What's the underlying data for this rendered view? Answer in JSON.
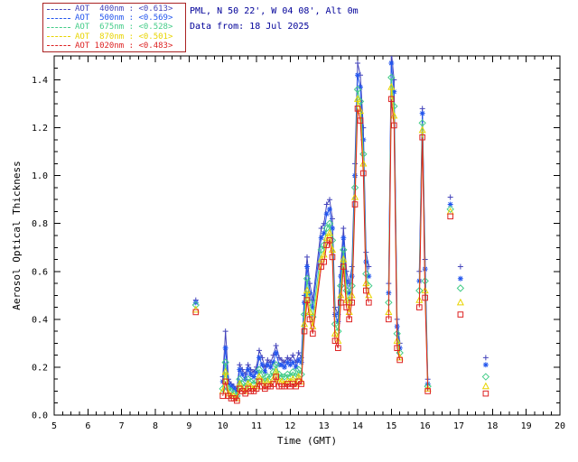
{
  "header": {
    "site_line": "PML, N 50 22', W 04 08', Alt 0m",
    "date_line": "Data from: 18 Jul 2025",
    "text_color": "#000099"
  },
  "legend": {
    "border_color": "#aa2222",
    "position": "top-left"
  },
  "chart_data": {
    "type": "line",
    "title": "",
    "xlabel": "Time (GMT)",
    "ylabel": "Aerosol Optical Thickness",
    "xlim": [
      5,
      20
    ],
    "ylim": [
      0,
      1.5
    ],
    "x_tick_labels": [
      "5",
      "6",
      "7",
      "8",
      "9",
      "10",
      "11",
      "12",
      "13",
      "14",
      "15",
      "16",
      "17",
      "18",
      "19",
      "20"
    ],
    "y_tick_labels": [
      "0.0",
      "0.2",
      "0.4",
      "0.6",
      "0.8",
      "1.0",
      "1.2",
      "1.4"
    ],
    "x_major_step": 1,
    "x_minor_step": 0.25,
    "y_major_step": 0.2,
    "y_minor_step": 0.05,
    "grid": false,
    "axis_color": "#000000",
    "background": "#ffffff",
    "gap_threshold": 0.28,
    "legend_position": "outside-top-left",
    "x": [
      9.2,
      10.0,
      10.08,
      10.17,
      10.25,
      10.33,
      10.42,
      10.5,
      10.58,
      10.67,
      10.75,
      10.83,
      10.92,
      11.0,
      11.08,
      11.17,
      11.25,
      11.33,
      11.42,
      11.5,
      11.58,
      11.67,
      11.75,
      11.83,
      11.92,
      12.0,
      12.08,
      12.17,
      12.25,
      12.33,
      12.42,
      12.5,
      12.58,
      12.67,
      12.92,
      13.0,
      13.08,
      13.17,
      13.25,
      13.33,
      13.42,
      13.5,
      13.58,
      13.67,
      13.75,
      13.83,
      13.92,
      14.0,
      14.08,
      14.17,
      14.25,
      14.33,
      14.92,
      15.0,
      15.08,
      15.17,
      15.25,
      15.83,
      15.92,
      16.0,
      16.08,
      16.75,
      17.05,
      17.8
    ],
    "series": [
      {
        "name": "aot-400nm",
        "label": "AOT  400nm : <0.613>",
        "wavelength_nm": 400,
        "mean_aot": 0.613,
        "color": "#4444bb",
        "marker": "plus",
        "values": [
          0.48,
          0.16,
          0.35,
          0.15,
          0.13,
          0.12,
          0.11,
          0.21,
          0.19,
          0.17,
          0.21,
          0.19,
          0.18,
          0.2,
          0.27,
          0.24,
          0.2,
          0.23,
          0.22,
          0.25,
          0.29,
          0.24,
          0.23,
          0.22,
          0.24,
          0.23,
          0.25,
          0.22,
          0.26,
          0.24,
          0.5,
          0.66,
          0.55,
          0.48,
          0.78,
          0.8,
          0.88,
          0.9,
          0.82,
          0.45,
          0.42,
          0.62,
          0.78,
          0.6,
          0.55,
          0.62,
          1.05,
          1.47,
          1.42,
          1.2,
          0.68,
          0.62,
          0.55,
          1.52,
          1.4,
          0.4,
          0.3,
          0.6,
          1.28,
          0.65,
          0.15,
          0.91,
          0.62,
          0.24
        ]
      },
      {
        "name": "aot-500nm",
        "label": "AOT  500nm : <0.569>",
        "wavelength_nm": 500,
        "mean_aot": 0.569,
        "color": "#2255ee",
        "marker": "asterisk",
        "values": [
          0.47,
          0.14,
          0.28,
          0.13,
          0.12,
          0.11,
          0.1,
          0.19,
          0.17,
          0.15,
          0.19,
          0.17,
          0.16,
          0.18,
          0.24,
          0.21,
          0.18,
          0.21,
          0.2,
          0.22,
          0.26,
          0.21,
          0.21,
          0.2,
          0.22,
          0.21,
          0.22,
          0.2,
          0.23,
          0.22,
          0.47,
          0.62,
          0.51,
          0.45,
          0.74,
          0.76,
          0.84,
          0.86,
          0.78,
          0.42,
          0.39,
          0.58,
          0.74,
          0.56,
          0.51,
          0.58,
          1.0,
          1.42,
          1.37,
          1.15,
          0.64,
          0.58,
          0.51,
          1.47,
          1.35,
          0.37,
          0.28,
          0.56,
          1.26,
          0.61,
          0.13,
          0.88,
          0.57,
          0.21
        ]
      },
      {
        "name": "aot-675nm",
        "label": "AOT  675nm : <0.528>",
        "wavelength_nm": 675,
        "mean_aot": 0.528,
        "color": "#44cc88",
        "marker": "diamond",
        "values": [
          0.46,
          0.11,
          0.22,
          0.11,
          0.1,
          0.09,
          0.08,
          0.15,
          0.13,
          0.12,
          0.15,
          0.14,
          0.13,
          0.14,
          0.19,
          0.17,
          0.14,
          0.16,
          0.16,
          0.18,
          0.21,
          0.17,
          0.16,
          0.16,
          0.17,
          0.16,
          0.18,
          0.16,
          0.19,
          0.17,
          0.42,
          0.57,
          0.47,
          0.41,
          0.69,
          0.71,
          0.78,
          0.8,
          0.73,
          0.38,
          0.35,
          0.54,
          0.69,
          0.52,
          0.47,
          0.54,
          0.95,
          1.36,
          1.31,
          1.09,
          0.59,
          0.54,
          0.47,
          1.41,
          1.29,
          0.34,
          0.26,
          0.52,
          1.22,
          0.56,
          0.12,
          0.86,
          0.53,
          0.16
        ]
      },
      {
        "name": "aot-870nm",
        "label": "AOT  870nm : <0.501>",
        "wavelength_nm": 870,
        "mean_aot": 0.501,
        "color": "#e8d400",
        "marker": "triangle",
        "values": [
          0.44,
          0.1,
          0.18,
          0.09,
          0.08,
          0.08,
          0.07,
          0.13,
          0.11,
          0.1,
          0.13,
          0.12,
          0.11,
          0.12,
          0.16,
          0.14,
          0.12,
          0.14,
          0.13,
          0.15,
          0.18,
          0.14,
          0.14,
          0.13,
          0.14,
          0.14,
          0.15,
          0.13,
          0.16,
          0.14,
          0.38,
          0.52,
          0.43,
          0.37,
          0.65,
          0.67,
          0.74,
          0.76,
          0.69,
          0.34,
          0.31,
          0.5,
          0.65,
          0.48,
          0.43,
          0.5,
          0.91,
          1.32,
          1.27,
          1.05,
          0.55,
          0.5,
          0.43,
          1.37,
          1.25,
          0.31,
          0.24,
          0.48,
          1.19,
          0.52,
          0.11,
          0.85,
          0.47,
          0.12
        ]
      },
      {
        "name": "aot-1020nm",
        "label": "AOT 1020nm : <0.483>",
        "wavelength_nm": 1020,
        "mean_aot": 0.483,
        "color": "#dd2222",
        "marker": "square",
        "values": [
          0.43,
          0.08,
          0.14,
          0.08,
          0.07,
          0.07,
          0.06,
          0.11,
          0.1,
          0.09,
          0.11,
          0.1,
          0.1,
          0.11,
          0.14,
          0.12,
          0.11,
          0.12,
          0.12,
          0.13,
          0.16,
          0.12,
          0.12,
          0.12,
          0.13,
          0.12,
          0.13,
          0.12,
          0.14,
          0.13,
          0.35,
          0.48,
          0.4,
          0.34,
          0.62,
          0.64,
          0.71,
          0.73,
          0.66,
          0.31,
          0.28,
          0.47,
          0.62,
          0.45,
          0.4,
          0.47,
          0.88,
          1.28,
          1.23,
          1.01,
          0.52,
          0.47,
          0.4,
          1.32,
          1.21,
          0.28,
          0.23,
          0.45,
          1.16,
          0.49,
          0.1,
          0.83,
          0.42,
          0.09
        ]
      }
    ]
  }
}
